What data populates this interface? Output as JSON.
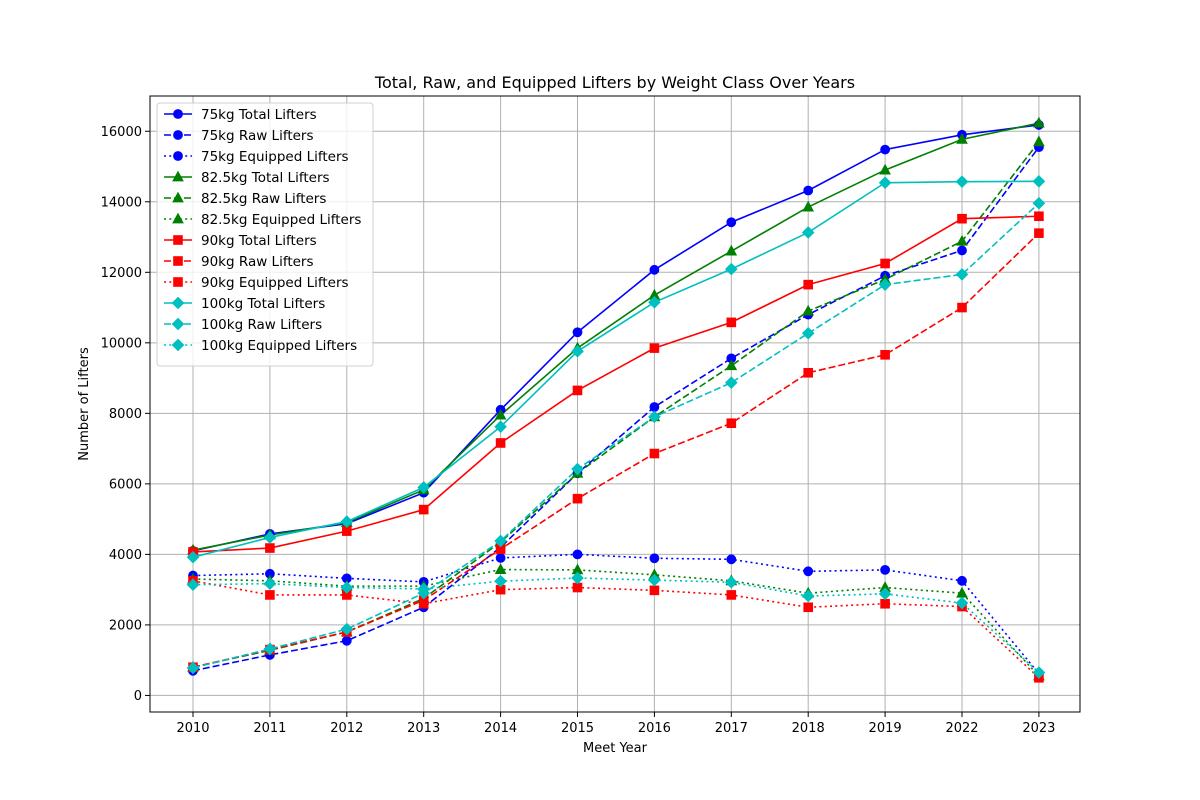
{
  "chart_data": {
    "type": "line",
    "title": "Total, Raw, and Equipped Lifters by Weight Class Over Years",
    "xlabel": "Meet Year",
    "ylabel": "Number of Lifters",
    "categories": [
      "2010",
      "2011",
      "2012",
      "2013",
      "2014",
      "2015",
      "2016",
      "2017",
      "2018",
      "2019",
      "2022",
      "2023"
    ],
    "ylim": [
      -470,
      17000
    ],
    "yticks": [
      0,
      2000,
      4000,
      6000,
      8000,
      10000,
      12000,
      14000,
      16000
    ],
    "grid": true,
    "legend_position": "upper-left",
    "series": [
      {
        "name": "75kg Total Lifters",
        "color": "#0000ff",
        "dash": "solid",
        "marker": "circle",
        "values": [
          4100,
          4580,
          4870,
          5750,
          8100,
          10300,
          12070,
          13420,
          14320,
          15480,
          15900,
          16180
        ]
      },
      {
        "name": "75kg Raw Lifters",
        "color": "#0000ff",
        "dash": "dashed",
        "marker": "circle",
        "values": [
          700,
          1150,
          1550,
          2500,
          4200,
          6300,
          8180,
          9560,
          10800,
          11900,
          12620,
          15550
        ]
      },
      {
        "name": "75kg Equipped Lifters",
        "color": "#0000ff",
        "dash": "dotted",
        "marker": "circle",
        "values": [
          3400,
          3450,
          3320,
          3220,
          3900,
          4000,
          3890,
          3860,
          3520,
          3560,
          3250,
          620
        ]
      },
      {
        "name": "82.5kg Total Lifters",
        "color": "#008000",
        "dash": "solid",
        "marker": "triangle",
        "values": [
          4120,
          4550,
          4900,
          5830,
          7950,
          9850,
          11350,
          12600,
          13850,
          14900,
          15770,
          16230
        ]
      },
      {
        "name": "82.5kg Raw Lifters",
        "color": "#008000",
        "dash": "dashed",
        "marker": "triangle",
        "values": [
          800,
          1280,
          1800,
          2750,
          4350,
          6300,
          7900,
          9350,
          10900,
          11800,
          12880,
          15700
        ]
      },
      {
        "name": "82.5kg Equipped Lifters",
        "color": "#008000",
        "dash": "dotted",
        "marker": "triangle",
        "values": [
          3300,
          3250,
          3100,
          3100,
          3570,
          3560,
          3420,
          3250,
          2900,
          3060,
          2900,
          550
        ]
      },
      {
        "name": "90kg Total Lifters",
        "color": "#ff0000",
        "dash": "solid",
        "marker": "square",
        "values": [
          4070,
          4180,
          4660,
          5270,
          7160,
          8650,
          9850,
          10580,
          11650,
          12250,
          13520,
          13590
        ]
      },
      {
        "name": "90kg Raw Lifters",
        "color": "#ff0000",
        "dash": "dashed",
        "marker": "square",
        "values": [
          800,
          1300,
          1800,
          2700,
          4150,
          5580,
          6860,
          7720,
          9150,
          9660,
          11000,
          13110
        ]
      },
      {
        "name": "90kg Equipped Lifters",
        "color": "#ff0000",
        "dash": "dotted",
        "marker": "square",
        "values": [
          3250,
          2850,
          2850,
          2600,
          3000,
          3060,
          2980,
          2850,
          2500,
          2600,
          2520,
          500
        ]
      },
      {
        "name": "100kg Total Lifters",
        "color": "#00bfbf",
        "dash": "solid",
        "marker": "diamond",
        "values": [
          3920,
          4480,
          4930,
          5900,
          7620,
          9760,
          11150,
          12090,
          13130,
          14540,
          14570,
          14580
        ]
      },
      {
        "name": "100kg Raw Lifters",
        "color": "#00bfbf",
        "dash": "dashed",
        "marker": "diamond",
        "values": [
          780,
          1320,
          1880,
          2900,
          4380,
          6420,
          7900,
          8870,
          10270,
          11650,
          11940,
          13960
        ]
      },
      {
        "name": "100kg Equipped Lifters",
        "color": "#00bfbf",
        "dash": "dotted",
        "marker": "diamond",
        "values": [
          3140,
          3170,
          3060,
          3020,
          3240,
          3330,
          3270,
          3210,
          2820,
          2880,
          2620,
          650
        ]
      }
    ]
  }
}
